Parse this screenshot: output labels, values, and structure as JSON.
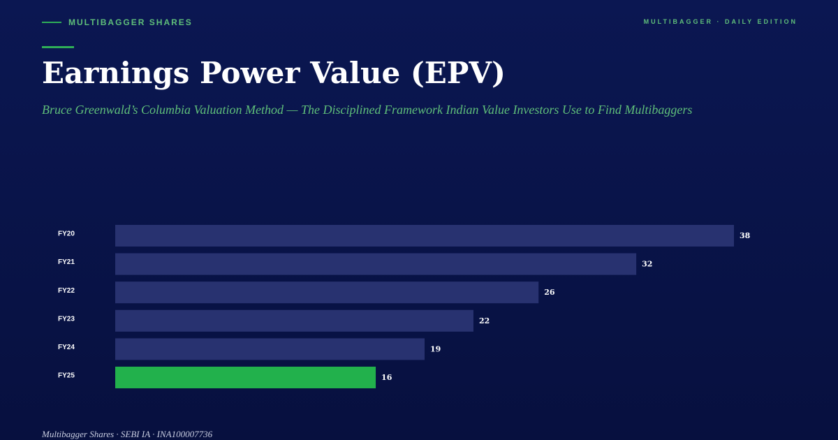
{
  "header": {
    "brand": "MULTIBAGGER SHARES",
    "edition": "MULTIBAGGER · DAILY EDITION",
    "title": "Earnings Power Value (EPV)",
    "subtitle": "Bruce Greenwald’s Columbia Valuation Method — The Disciplined Framework Indian Value Investors Use to Find Multibaggers"
  },
  "chart_data": {
    "type": "bar",
    "orientation": "horizontal",
    "categories": [
      "FY20",
      "FY21",
      "FY22",
      "FY23",
      "FY24",
      "FY25"
    ],
    "values": [
      38,
      32,
      26,
      22,
      19,
      16
    ],
    "colors": [
      "#283270",
      "#283270",
      "#283270",
      "#283270",
      "#283270",
      "#22b14c"
    ]
  },
  "footer": {
    "text": "Multibagger Shares · SEBI IA · INA100007736"
  }
}
